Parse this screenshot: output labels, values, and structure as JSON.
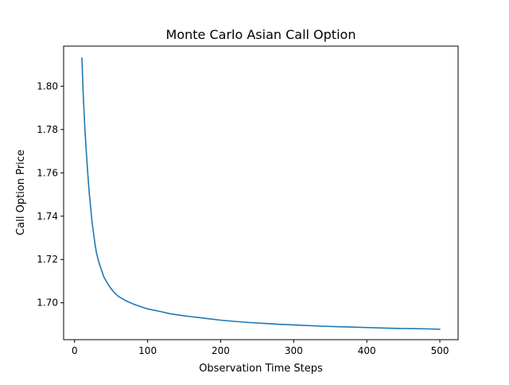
{
  "chart_data": {
    "type": "line",
    "title": "Monte Carlo Asian Call Option",
    "xlabel": "Observation Time Steps",
    "ylabel": "Call Option Price",
    "xlim": [
      -15,
      525
    ],
    "ylim": [
      1.683,
      1.8185
    ],
    "xticks": [
      0,
      100,
      200,
      300,
      400,
      500
    ],
    "yticks": [
      1.7,
      1.72,
      1.74,
      1.76,
      1.78,
      1.8
    ],
    "xtick_labels": [
      "0",
      "100",
      "200",
      "300",
      "400",
      "500"
    ],
    "ytick_labels": [
      "1.70",
      "1.72",
      "1.74",
      "1.76",
      "1.78",
      "1.80"
    ],
    "grid": false,
    "line_color": "#1f77b4",
    "series": [
      {
        "x": [
          10,
          12,
          14,
          16,
          18,
          20,
          22,
          24,
          26,
          28,
          30,
          33,
          36,
          40,
          45,
          50,
          55,
          60,
          65,
          70,
          80,
          90,
          100,
          110,
          120,
          130,
          140,
          150,
          160,
          170,
          180,
          200,
          220,
          240,
          260,
          280,
          300,
          320,
          340,
          360,
          380,
          400,
          420,
          440,
          460,
          480,
          500
        ],
        "y": [
          1.813,
          1.795,
          1.781,
          1.77,
          1.76,
          1.751,
          1.744,
          1.737,
          1.732,
          1.727,
          1.723,
          1.719,
          1.716,
          1.712,
          1.709,
          1.7065,
          1.7045,
          1.703,
          1.702,
          1.701,
          1.6995,
          1.6983,
          1.6972,
          1.6965,
          1.6958,
          1.695,
          1.6945,
          1.694,
          1.6936,
          1.6932,
          1.6928,
          1.692,
          1.6914,
          1.6909,
          1.6905,
          1.6901,
          1.6898,
          1.6895,
          1.6892,
          1.689,
          1.6888,
          1.6886,
          1.6884,
          1.6882,
          1.6881,
          1.688,
          1.6878
        ]
      }
    ]
  }
}
